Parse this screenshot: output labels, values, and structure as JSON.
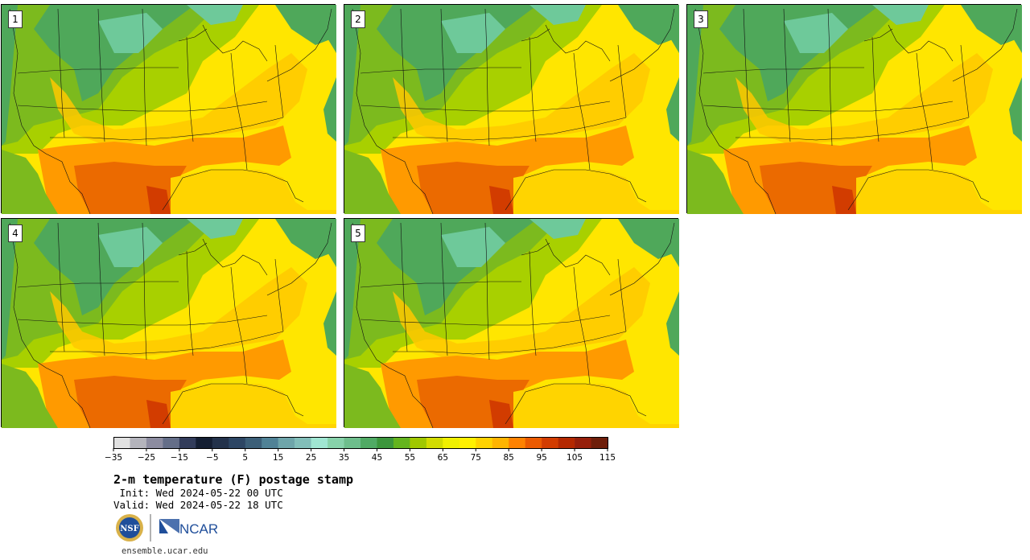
{
  "panels": [
    {
      "label": "1"
    },
    {
      "label": "2"
    },
    {
      "label": "3"
    },
    {
      "label": "4"
    },
    {
      "label": "5"
    }
  ],
  "colorbar": {
    "colors": [
      "#e1e1e1",
      "#b4b4bc",
      "#8c8ca0",
      "#646e88",
      "#323c5a",
      "#141e32",
      "#23324b",
      "#2d4664",
      "#3c5f78",
      "#508296",
      "#6ea5aa",
      "#82beb9",
      "#a0e6d2",
      "#87d2aa",
      "#6ebe8c",
      "#50aa64",
      "#3c963c",
      "#64b41e",
      "#a0c800",
      "#d2dc00",
      "#f0f000",
      "#fff000",
      "#ffd200",
      "#ffb400",
      "#ff8200",
      "#eb5a00",
      "#d23c00",
      "#b42800",
      "#961e0a",
      "#6e1e0a"
    ],
    "tick_labels": [
      "−35",
      "−25",
      "−15",
      "−5",
      "5",
      "15",
      "25",
      "35",
      "45",
      "55",
      "65",
      "75",
      "85",
      "95",
      "105",
      "115"
    ]
  },
  "title": "2-m temperature (F) postage stamp",
  "init": " Init: Wed 2024-05-22 00 UTC",
  "valid": "Valid: Wed 2024-05-22 18 UTC",
  "logos": {
    "nsf": "NSF",
    "ncar": "NCAR"
  },
  "url": "ensemble.ucar.edu"
}
